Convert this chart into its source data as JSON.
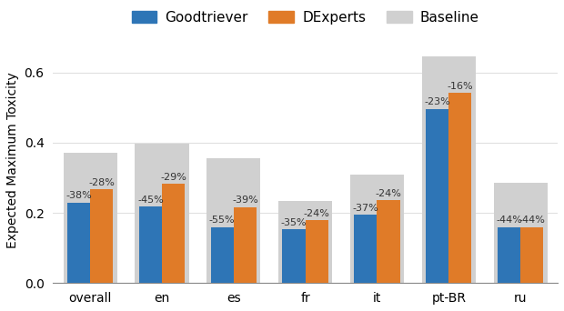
{
  "categories": [
    "overall",
    "en",
    "es",
    "fr",
    "it",
    "pt-BR",
    "ru"
  ],
  "baseline": [
    0.37,
    0.397,
    0.355,
    0.235,
    0.31,
    0.645,
    0.285
  ],
  "goodtriever": [
    0.2294,
    0.218,
    0.1598,
    0.1528,
    0.1953,
    0.4965,
    0.1596
  ],
  "dexperts": [
    0.2664,
    0.282,
    0.2165,
    0.1786,
    0.2356,
    0.5412,
    0.1596
  ],
  "goodtriever_labels": [
    "-38%",
    "-45%",
    "-55%",
    "-35%",
    "-37%",
    "-23%",
    "-44%"
  ],
  "dexperts_labels": [
    "-28%",
    "-29%",
    "-39%",
    "-24%",
    "-24%",
    "-16%",
    "-44%"
  ],
  "goodtriever_color": "#2E75B6",
  "dexperts_color": "#E07B28",
  "baseline_color": "#D0D0D0",
  "ylabel": "Expected Maximum Toxicity",
  "ylim": [
    0,
    0.7
  ],
  "bar_width": 0.32,
  "group_width": 0.75,
  "legend_labels": [
    "Goodtriever",
    "DExperts",
    "Baseline"
  ],
  "label_fontsize": 8.0,
  "axis_fontsize": 10,
  "legend_fontsize": 11
}
